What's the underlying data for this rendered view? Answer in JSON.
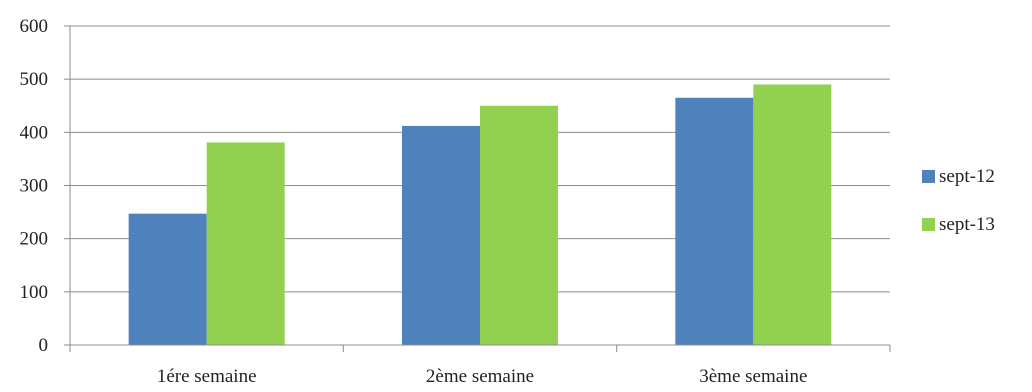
{
  "chart_data": {
    "type": "bar",
    "categories": [
      "1ére semaine",
      "2ème semaine",
      "3ème semaine"
    ],
    "series": [
      {
        "name": "sept-12",
        "values": [
          247,
          412,
          465
        ],
        "color": "#4F81BD"
      },
      {
        "name": "sept-13",
        "values": [
          381,
          450,
          490
        ],
        "color": "#92D050"
      }
    ],
    "ylim": [
      0,
      600
    ],
    "yticks": [
      0,
      100,
      200,
      300,
      400,
      500,
      600
    ],
    "grid": true,
    "legend": "right",
    "title": "",
    "xlabel": "",
    "ylabel": ""
  }
}
